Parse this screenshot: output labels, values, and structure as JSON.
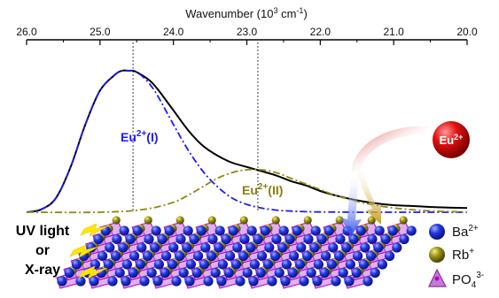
{
  "chart_data": {
    "type": "line",
    "xlabel_base": "Wavenumber (10",
    "xlabel_exp": "3",
    "xlabel_unit": " cm",
    "xlabel_unit_exp": "-1",
    "xlabel_close": ")",
    "xlim": [
      26.0,
      20.0
    ],
    "x_ticks": [
      "26.0",
      "25.0",
      "24.0",
      "23.0",
      "22.0",
      "21.0",
      "20.0"
    ],
    "x_tick_values": [
      26.0,
      25.0,
      24.0,
      23.0,
      22.0,
      21.0,
      20.0
    ],
    "ylim": [
      0,
      1.05
    ],
    "series": [
      {
        "name": "",
        "style": "solid",
        "color": "#000000",
        "x": [
          26.0,
          25.8,
          25.6,
          25.4,
          25.2,
          25.0,
          24.8,
          24.7,
          24.6,
          24.55,
          24.5,
          24.4,
          24.3,
          24.2,
          24.0,
          23.8,
          23.6,
          23.4,
          23.2,
          23.0,
          22.8,
          22.6,
          22.4,
          22.2,
          22.0,
          21.8,
          21.6,
          21.4,
          21.2,
          21.0,
          20.8,
          20.6,
          20.4,
          20.2,
          20.0
        ],
        "y": [
          0.0,
          0.02,
          0.1,
          0.32,
          0.62,
          0.86,
          0.97,
          1.0,
          1.0,
          1.0,
          0.99,
          0.96,
          0.92,
          0.86,
          0.72,
          0.58,
          0.47,
          0.4,
          0.35,
          0.32,
          0.29,
          0.26,
          0.22,
          0.19,
          0.15,
          0.12,
          0.095,
          0.075,
          0.06,
          0.05,
          0.045,
          0.04,
          0.035,
          0.032,
          0.03
        ]
      },
      {
        "name": "",
        "style": "dash-dot",
        "color": "#1a1aff",
        "x": [
          26.0,
          25.8,
          25.6,
          25.4,
          25.2,
          25.0,
          24.8,
          24.7,
          24.6,
          24.55,
          24.5,
          24.4,
          24.3,
          24.2,
          24.0,
          23.8,
          23.6,
          23.4,
          23.2,
          23.0,
          22.8,
          22.6,
          22.4,
          22.2,
          22.0,
          21.5,
          21.0,
          20.5,
          20.0
        ],
        "y": [
          0.0,
          0.02,
          0.1,
          0.32,
          0.62,
          0.86,
          0.97,
          1.0,
          1.0,
          1.0,
          0.99,
          0.95,
          0.89,
          0.81,
          0.62,
          0.44,
          0.29,
          0.18,
          0.1,
          0.055,
          0.03,
          0.015,
          0.008,
          0.004,
          0.002,
          0.0,
          0.0,
          0.0,
          0.0
        ]
      },
      {
        "name": "",
        "style": "dash-dot",
        "color": "#8a8a10",
        "x": [
          26.0,
          25.0,
          24.4,
          24.0,
          23.8,
          23.6,
          23.4,
          23.2,
          23.0,
          22.8,
          22.6,
          22.4,
          22.2,
          22.0,
          21.8,
          21.6,
          21.4,
          21.2,
          21.0,
          20.8,
          20.6,
          20.4,
          20.2,
          20.0
        ],
        "y": [
          0.0,
          0.0,
          0.02,
          0.07,
          0.12,
          0.18,
          0.24,
          0.28,
          0.3,
          0.3,
          0.28,
          0.24,
          0.2,
          0.16,
          0.12,
          0.09,
          0.065,
          0.045,
          0.03,
          0.02,
          0.012,
          0.007,
          0.004,
          0.002
        ]
      }
    ],
    "guide_lines_x": [
      24.55,
      22.85
    ],
    "annotations": {
      "eu_site1_base": "Eu",
      "eu_site1_sup": "2+",
      "eu_site1_tail": "(I)",
      "eu_site2_base": "Eu",
      "eu_site2_sup": "2+",
      "eu_site2_tail": "(II)",
      "ion_base": "Eu",
      "ion_sup": "2+",
      "uv_line1": "UV light",
      "uv_line2": "or",
      "uv_line3": "X-ray"
    },
    "legend": {
      "position": "bottom-right",
      "items": [
        {
          "base": "Ba",
          "sup": "2+",
          "sub": "",
          "color": "#1a2fd6",
          "marker": "sphere"
        },
        {
          "base": "Rb",
          "sup": "+",
          "sub": "",
          "color": "#8f8f14",
          "marker": "sphere"
        },
        {
          "base": "PO",
          "sup": "3-",
          "sub": "4",
          "color": "#b04fc8",
          "marker": "tetrahedron"
        }
      ]
    },
    "colors": {
      "site1": "#1a1aff",
      "site2": "#8a7d10",
      "ion": "#e01010",
      "bolt": "#ffe600",
      "lattice_bond": "#c000c0",
      "lattice_fill": "#c46fe0"
    }
  }
}
